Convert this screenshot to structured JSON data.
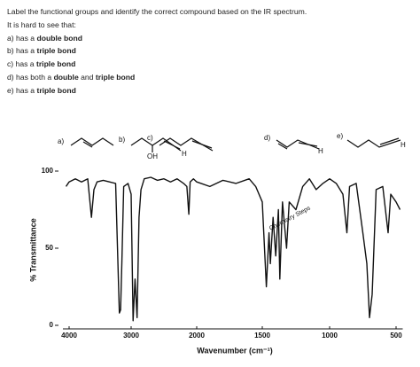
{
  "question": {
    "title": "Label the functional groups and identify the correct compound based on the IR spectrum.",
    "subtitle": "It is hard to see that:",
    "items": [
      [
        "a) has a ",
        "double bond"
      ],
      [
        "b) has a ",
        "triple bond"
      ],
      [
        "c) has a ",
        "triple bond"
      ],
      [
        "d) has both a ",
        "double",
        " and ",
        "triple bond"
      ],
      [
        "e) has a ",
        "triple bond"
      ]
    ]
  },
  "molecules": {
    "a": "a)",
    "b": "b)",
    "b_oh": "OH",
    "b_h": "H",
    "c": "c)",
    "d": "d)",
    "d_h": "H",
    "e": "e)",
    "e_h": "H"
  },
  "watermark": "Chemistry Steps",
  "chart_data": {
    "type": "line",
    "x_label": "Wavenumber (cm⁻¹)",
    "y_label": "% Transmittance",
    "x": [
      4050,
      4000,
      3900,
      3800,
      3700,
      3640,
      3600,
      3550,
      3450,
      3350,
      3250,
      3190,
      3170,
      3150,
      3120,
      3050,
      3000,
      2970,
      2940,
      2910,
      2880,
      2850,
      2800,
      2700,
      2600,
      2500,
      2400,
      2300,
      2200,
      2150,
      2120,
      2100,
      2050,
      2000,
      1900,
      1800,
      1700,
      1600,
      1550,
      1500,
      1470,
      1450,
      1440,
      1420,
      1400,
      1380,
      1370,
      1350,
      1320,
      1300,
      1250,
      1200,
      1150,
      1100,
      1050,
      1000,
      950,
      900,
      870,
      850,
      800,
      750,
      720,
      700,
      680,
      650,
      600,
      560,
      540,
      500,
      470
    ],
    "series": [
      {
        "name": "spectrum",
        "color": "#111111",
        "values": [
          90,
          93,
          95,
          93,
          95,
          70,
          88,
          93,
          94,
          93,
          92,
          8,
          10,
          40,
          90,
          92,
          85,
          3,
          30,
          5,
          70,
          88,
          95,
          96,
          94,
          95,
          93,
          95,
          92,
          90,
          72,
          93,
          95,
          93,
          90,
          94,
          92,
          95,
          90,
          80,
          25,
          60,
          40,
          70,
          45,
          75,
          30,
          80,
          50,
          80,
          75,
          90,
          95,
          88,
          92,
          95,
          92,
          85,
          60,
          90,
          92,
          60,
          40,
          5,
          20,
          88,
          90,
          60,
          85,
          80,
          75
        ]
      }
    ],
    "xlim": [
      4100,
      450
    ],
    "ylim": [
      0,
      100
    ],
    "xticks": [
      4000,
      3000,
      2000,
      1500,
      1000,
      500
    ],
    "yticks": [
      0,
      50,
      100
    ]
  }
}
